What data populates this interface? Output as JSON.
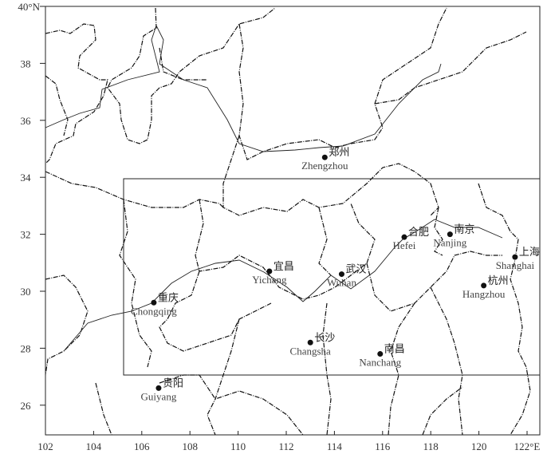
{
  "map": {
    "x_axis": {
      "ticks": [
        "102",
        "104",
        "106",
        "108",
        "110",
        "112",
        "114",
        "116",
        "118",
        "120",
        "122°E"
      ],
      "values": [
        102,
        104,
        106,
        108,
        110,
        112,
        114,
        116,
        118,
        120,
        122
      ]
    },
    "y_axis": {
      "ticks": [
        "26",
        "28",
        "30",
        "32",
        "34",
        "36",
        "38",
        "40°N"
      ],
      "values": [
        26,
        28,
        30,
        32,
        34,
        36,
        38,
        40
      ]
    },
    "extent": {
      "lon": [
        102,
        122.5
      ],
      "lat": [
        25,
        40
      ]
    },
    "study_box": {
      "lon": [
        105.3,
        122.5
      ],
      "lat": [
        27.1,
        34
      ]
    },
    "cities": [
      {
        "cn": "郑州",
        "en": "Zhengzhou",
        "lon": 113.6,
        "lat": 34.7
      },
      {
        "cn": "合肥",
        "en": "Hefei",
        "lon": 116.9,
        "lat": 31.9
      },
      {
        "cn": "南京",
        "en": "Nanjing",
        "lon": 118.8,
        "lat": 32.0
      },
      {
        "cn": "上海",
        "en": "Shanghai",
        "lon": 121.5,
        "lat": 31.2
      },
      {
        "cn": "杭州",
        "en": "Hangzhou",
        "lon": 120.2,
        "lat": 30.2
      },
      {
        "cn": "宜昌",
        "en": "Yichang",
        "lon": 111.3,
        "lat": 30.7
      },
      {
        "cn": "武汉",
        "en": "Wuhan",
        "lon": 114.3,
        "lat": 30.6
      },
      {
        "cn": "重庆",
        "en": "Chongqing",
        "lon": 106.5,
        "lat": 29.6
      },
      {
        "cn": "长沙",
        "en": "Changsha",
        "lon": 113.0,
        "lat": 28.2
      },
      {
        "cn": "南昌",
        "en": "Nanchang",
        "lon": 115.9,
        "lat": 27.8
      },
      {
        "cn": "贵阳",
        "en": "Guiyang",
        "lon": 106.7,
        "lat": 26.6
      }
    ]
  }
}
